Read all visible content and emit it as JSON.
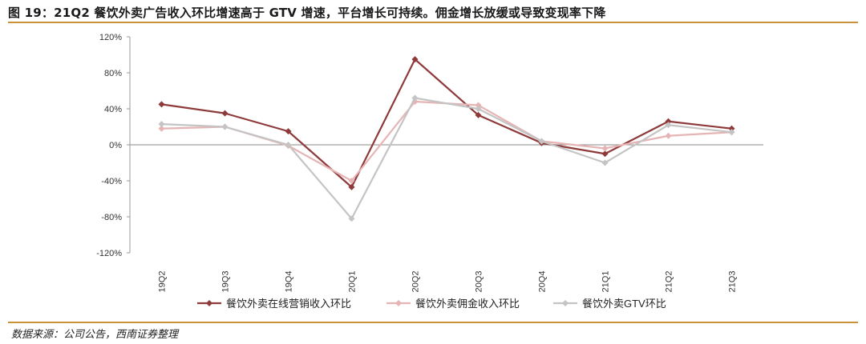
{
  "header": {
    "title": "图 19：21Q2 餐饮外卖广告收入环比增速高于 GTV 增速，平台增长可持续。佣金增长放缓或导致变现率下降"
  },
  "footer": {
    "source": "数据来源：公司公告，西南证券整理"
  },
  "chart_data": {
    "type": "line",
    "categories": [
      "19Q2",
      "19Q3",
      "19Q4",
      "20Q1",
      "20Q2",
      "20Q3",
      "20Q4",
      "21Q1",
      "21Q2",
      "21Q3"
    ],
    "yticks": [
      "120%",
      "80%",
      "40%",
      "0%",
      "-40%",
      "-80%",
      "-120%"
    ],
    "ylim": [
      -120,
      120
    ],
    "grid": false,
    "legend_position": "bottom",
    "series": [
      {
        "name": "餐饮外卖在线营销收入环比",
        "color": "#8e3a3a",
        "values": [
          45,
          35,
          15,
          -47,
          95,
          33,
          2,
          -10,
          26,
          18
        ]
      },
      {
        "name": "餐饮外卖佣金收入环比",
        "color": "#e6b4b4",
        "values": [
          18,
          20,
          -1,
          -40,
          48,
          44,
          4,
          -4,
          10,
          14
        ]
      },
      {
        "name": "餐饮外卖GTV环比",
        "color": "#c4c4c4",
        "values": [
          23,
          20,
          0,
          -82,
          52,
          40,
          4,
          -20,
          22,
          14
        ]
      }
    ]
  }
}
